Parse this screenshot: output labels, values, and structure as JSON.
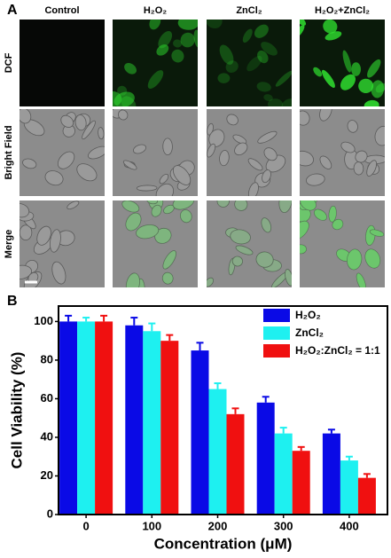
{
  "panel_a": {
    "label": "A",
    "columns": [
      "Control",
      "H₂O₂",
      "ZnCl₂",
      "H₂O₂+ZnCl₂"
    ],
    "rows": [
      "DCF",
      "Bright Field",
      "Merge"
    ]
  },
  "chart_data": {
    "type": "bar",
    "panel_label": "B",
    "x_label": "Concentration (μM)",
    "y_label": "Cell Viability (%)",
    "categories": [
      "0",
      "100",
      "200",
      "300",
      "400"
    ],
    "series": [
      {
        "name": "H₂O₂",
        "color": "#0a0ae6",
        "values": [
          100,
          98,
          85,
          58,
          42
        ],
        "errors": [
          3,
          4,
          4,
          3,
          2
        ]
      },
      {
        "name": "ZnCl₂",
        "color": "#1ef0f0",
        "values": [
          100,
          95,
          65,
          42,
          28
        ],
        "errors": [
          2,
          4,
          3,
          3,
          2
        ]
      },
      {
        "name": "H₂O₂:ZnCl₂ = 1:1",
        "color": "#f01010",
        "values": [
          100,
          90,
          52,
          33,
          19
        ],
        "errors": [
          3,
          3,
          3,
          2,
          2
        ]
      }
    ],
    "ylim": [
      0,
      108
    ],
    "yticks": [
      0,
      20,
      40,
      60,
      80,
      100
    ],
    "legend": "upper right"
  }
}
